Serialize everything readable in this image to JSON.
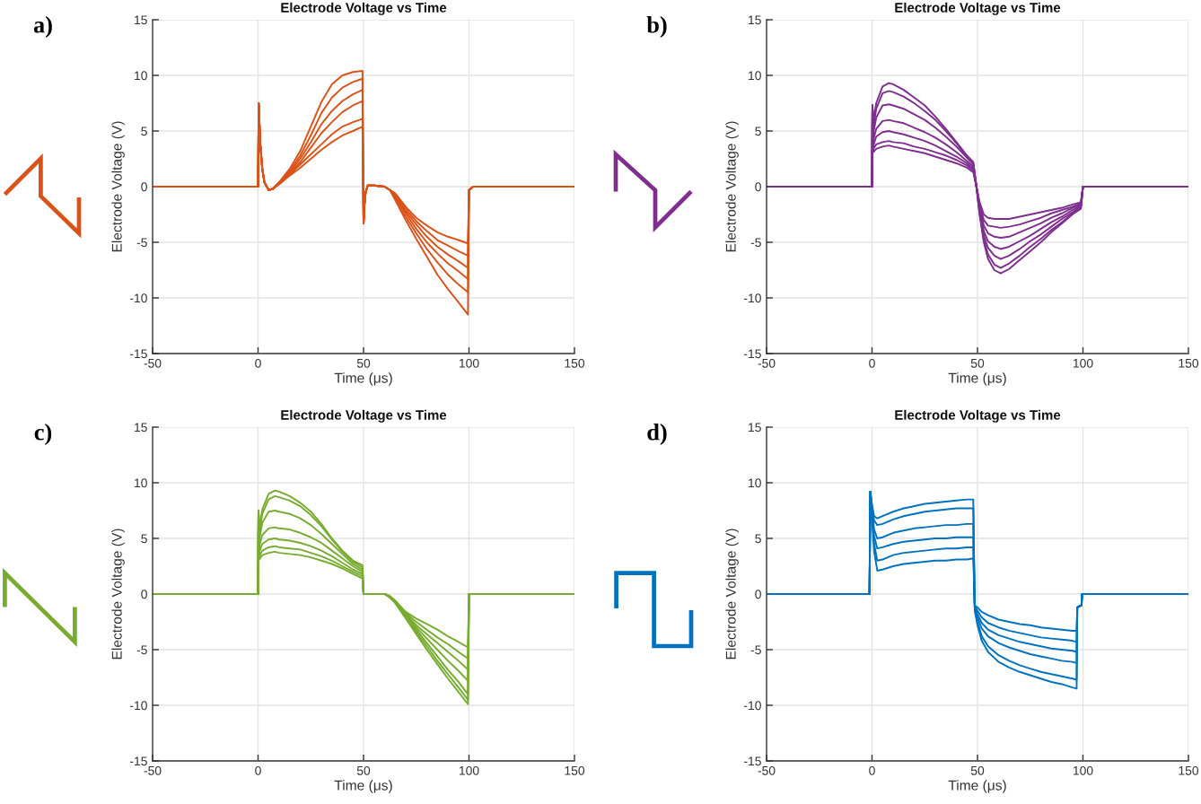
{
  "chart_data": [
    {
      "type": "line",
      "title": "Electrode Voltage vs Time",
      "xlabel": "Time (μs)",
      "ylabel": "Electrode Voltage (V)",
      "annotations": [
        "a)"
      ],
      "xlim": [
        -50,
        150
      ],
      "xticks": [
        -50,
        0,
        50,
        100,
        150
      ],
      "ylim": [
        -15,
        15
      ],
      "yticks": [
        -15,
        -10,
        -5,
        0,
        5,
        10,
        15
      ],
      "grid": true,
      "x": [
        -50,
        0,
        0.3,
        1,
        2,
        3,
        5,
        7,
        10,
        15,
        20,
        25,
        30,
        35,
        40,
        45,
        49.5,
        50,
        50.5,
        51,
        52,
        55,
        60,
        62.5,
        65,
        70,
        75,
        80,
        85,
        90,
        95,
        99.5,
        100,
        102,
        150
      ],
      "series": [
        {
          "color": "#d95319",
          "values": [
            0,
            0,
            7.5,
            4.0,
            1.6,
            0.4,
            -0.3,
            -0.2,
            0.4,
            1.6,
            3.2,
            5.4,
            7.6,
            9.2,
            10.0,
            10.3,
            10.4,
            -3.3,
            -1.5,
            -0.5,
            0.1,
            0.1,
            0,
            -0.3,
            -1.2,
            -3.0,
            -4.7,
            -6.3,
            -7.9,
            -9.2,
            -10.4,
            -11.5,
            -0.3,
            0,
            0
          ]
        },
        {
          "color": "#d95319",
          "values": [
            0,
            0,
            7.5,
            4.0,
            1.6,
            0.4,
            -0.3,
            -0.2,
            0.4,
            1.4,
            2.8,
            4.6,
            6.6,
            8.0,
            8.9,
            9.4,
            9.7,
            -3.3,
            -1.5,
            -0.5,
            0.1,
            0.1,
            0,
            -0.3,
            -1.0,
            -2.7,
            -4.2,
            -5.6,
            -6.8,
            -7.9,
            -8.8,
            -9.5,
            -0.3,
            0,
            0
          ]
        },
        {
          "color": "#d95319",
          "values": [
            0,
            0,
            7.5,
            4.0,
            1.6,
            0.4,
            -0.3,
            -0.2,
            0.3,
            1.3,
            2.5,
            4.0,
            5.6,
            6.8,
            7.7,
            8.3,
            8.7,
            -3.3,
            -1.5,
            -0.5,
            0.1,
            0.1,
            0,
            -0.3,
            -0.9,
            -2.4,
            -3.8,
            -5.0,
            -6.0,
            -6.9,
            -7.6,
            -8.3,
            -0.3,
            0,
            0
          ]
        },
        {
          "color": "#d95319",
          "values": [
            0,
            0,
            7.5,
            4.0,
            1.6,
            0.4,
            -0.3,
            -0.2,
            0.3,
            1.2,
            2.2,
            3.5,
            4.8,
            5.8,
            6.7,
            7.3,
            7.7,
            -3.3,
            -1.5,
            -0.5,
            0.1,
            0.1,
            0,
            -0.3,
            -0.8,
            -2.2,
            -3.4,
            -4.5,
            -5.4,
            -6.1,
            -6.7,
            -7.3,
            -0.3,
            0,
            0
          ]
        },
        {
          "color": "#d95319",
          "values": [
            0,
            0,
            7.5,
            4.0,
            1.6,
            0.4,
            -0.3,
            -0.2,
            0.3,
            1.1,
            2.0,
            2.9,
            3.8,
            4.7,
            5.4,
            5.8,
            6.1,
            -3.3,
            -1.5,
            -0.5,
            0.1,
            0.1,
            0,
            -0.3,
            -0.7,
            -2.0,
            -3.1,
            -4.0,
            -4.8,
            -5.3,
            -5.8,
            -6.2,
            -0.3,
            0,
            0
          ]
        },
        {
          "color": "#d95319",
          "values": [
            0,
            0,
            7.5,
            4.0,
            1.6,
            0.4,
            -0.3,
            -0.2,
            0.2,
            1.0,
            1.7,
            2.5,
            3.3,
            4.0,
            4.6,
            5.0,
            5.4,
            -3.3,
            -1.5,
            -0.5,
            0.1,
            0.1,
            0,
            -0.3,
            -0.6,
            -1.8,
            -2.8,
            -3.5,
            -4.1,
            -4.5,
            -4.8,
            -5.1,
            -0.3,
            0,
            0
          ]
        }
      ]
    },
    {
      "type": "line",
      "title": "Electrode Voltage vs Time",
      "xlabel": "Time (μs)",
      "ylabel": "Electrode Voltage (V)",
      "annotations": [
        "b)"
      ],
      "xlim": [
        -50,
        150
      ],
      "xticks": [
        -50,
        0,
        50,
        100,
        150
      ],
      "ylim": [
        -15,
        15
      ],
      "yticks": [
        -15,
        -10,
        -5,
        0,
        5,
        10,
        15
      ],
      "grid": true,
      "x": [
        -50,
        0,
        0.2,
        0.6,
        2,
        5,
        8,
        10,
        15,
        20,
        25,
        30,
        35,
        40,
        45,
        48,
        49.5,
        51,
        53,
        55,
        58,
        61,
        65,
        70,
        75,
        80,
        85,
        90,
        95,
        99,
        100,
        150
      ],
      "series": [
        {
          "color": "#7e2f8e",
          "values": [
            0,
            0,
            7.3,
            5.8,
            7.5,
            9.0,
            9.3,
            9.2,
            8.7,
            8.0,
            7.3,
            6.3,
            5.2,
            4.0,
            2.8,
            2.2,
            0,
            -2.5,
            -5.0,
            -6.5,
            -7.5,
            -7.8,
            -7.4,
            -6.6,
            -5.8,
            -5.0,
            -4.1,
            -3.3,
            -2.5,
            -2.0,
            0,
            0
          ]
        },
        {
          "color": "#7e2f8e",
          "values": [
            0,
            0,
            7.3,
            5.3,
            7.0,
            8.4,
            8.6,
            8.5,
            8.1,
            7.5,
            6.8,
            6.0,
            5.0,
            3.9,
            2.7,
            2.1,
            0,
            -2.4,
            -4.8,
            -6.1,
            -7.0,
            -7.3,
            -6.9,
            -6.2,
            -5.4,
            -4.7,
            -3.9,
            -3.2,
            -2.4,
            -1.9,
            0,
            0
          ]
        },
        {
          "color": "#7e2f8e",
          "values": [
            0,
            0,
            7.3,
            4.8,
            6.2,
            7.3,
            7.4,
            7.3,
            7.0,
            6.5,
            6.0,
            5.3,
            4.5,
            3.6,
            2.6,
            2.0,
            0,
            -2.2,
            -4.4,
            -5.5,
            -6.2,
            -6.5,
            -6.2,
            -5.6,
            -4.9,
            -4.3,
            -3.6,
            -2.9,
            -2.3,
            -1.8,
            0,
            0
          ]
        },
        {
          "color": "#7e2f8e",
          "values": [
            0,
            0,
            7.3,
            4.2,
            5.2,
            5.9,
            6.0,
            5.9,
            5.7,
            5.3,
            4.9,
            4.4,
            3.8,
            3.1,
            2.3,
            1.8,
            0,
            -2.0,
            -4.0,
            -4.9,
            -5.4,
            -5.6,
            -5.4,
            -4.9,
            -4.4,
            -3.8,
            -3.2,
            -2.7,
            -2.1,
            -1.7,
            0,
            0
          ]
        },
        {
          "color": "#7e2f8e",
          "values": [
            0,
            0,
            7.3,
            3.7,
            4.5,
            4.9,
            5.0,
            4.9,
            4.7,
            4.4,
            4.1,
            3.7,
            3.2,
            2.7,
            2.1,
            1.6,
            0,
            -1.8,
            -3.5,
            -4.2,
            -4.5,
            -4.6,
            -4.5,
            -4.1,
            -3.7,
            -3.3,
            -2.8,
            -2.4,
            -1.9,
            -1.6,
            0,
            0
          ]
        },
        {
          "color": "#7e2f8e",
          "values": [
            0,
            0,
            7.3,
            3.4,
            3.8,
            4.0,
            4.1,
            4.0,
            3.9,
            3.6,
            3.4,
            3.1,
            2.8,
            2.4,
            1.9,
            1.5,
            0,
            -1.6,
            -3.0,
            -3.5,
            -3.6,
            -3.7,
            -3.6,
            -3.4,
            -3.1,
            -2.8,
            -2.4,
            -2.1,
            -1.8,
            -1.5,
            0,
            0
          ]
        },
        {
          "color": "#7e2f8e",
          "values": [
            0,
            0,
            7.3,
            3.1,
            3.4,
            3.6,
            3.7,
            3.6,
            3.4,
            3.2,
            3.0,
            2.7,
            2.4,
            2.1,
            1.7,
            1.3,
            0,
            -1.4,
            -2.5,
            -2.8,
            -2.9,
            -2.9,
            -2.9,
            -2.7,
            -2.5,
            -2.3,
            -2.1,
            -1.9,
            -1.6,
            -1.4,
            0,
            0
          ]
        }
      ]
    },
    {
      "type": "line",
      "title": "Electrode Voltage vs Time",
      "xlabel": "Time (μs)",
      "ylabel": "Electrode Voltage (V)",
      "annotations": [
        "c)"
      ],
      "xlim": [
        -50,
        150
      ],
      "xticks": [
        -50,
        0,
        50,
        100,
        150
      ],
      "ylim": [
        -15,
        15
      ],
      "yticks": [
        -15,
        -10,
        -5,
        0,
        5,
        10,
        15
      ],
      "grid": true,
      "x": [
        -50,
        0,
        0.2,
        0.6,
        2,
        5,
        8,
        10,
        15,
        20,
        25,
        30,
        35,
        40,
        45,
        49.5,
        50,
        55,
        60,
        62.5,
        65,
        70,
        75,
        80,
        85,
        90,
        95,
        99.5,
        100,
        150
      ],
      "series": [
        {
          "color": "#77ac30",
          "values": [
            0,
            0,
            7.5,
            5.8,
            7.6,
            9.0,
            9.3,
            9.2,
            8.8,
            8.2,
            7.4,
            6.3,
            5.0,
            3.9,
            3.0,
            2.6,
            0,
            0,
            0,
            -0.3,
            -0.8,
            -2.2,
            -3.6,
            -5.0,
            -6.3,
            -7.6,
            -8.8,
            -9.9,
            0,
            0
          ]
        },
        {
          "color": "#77ac30",
          "values": [
            0,
            0,
            7.5,
            5.4,
            7.2,
            8.5,
            8.8,
            8.7,
            8.4,
            7.9,
            7.1,
            6.1,
            4.9,
            3.8,
            2.9,
            2.4,
            0,
            0,
            0,
            -0.3,
            -0.8,
            -2.1,
            -3.4,
            -4.7,
            -6.0,
            -7.2,
            -8.4,
            -9.5,
            0,
            0
          ]
        },
        {
          "color": "#77ac30",
          "values": [
            0,
            0,
            7.5,
            4.9,
            6.4,
            7.4,
            7.5,
            7.4,
            7.2,
            6.8,
            6.2,
            5.4,
            4.5,
            3.6,
            2.7,
            2.2,
            0,
            0,
            0,
            -0.3,
            -0.7,
            -2.0,
            -3.2,
            -4.4,
            -5.6,
            -6.8,
            -7.9,
            -9.0,
            0,
            0
          ]
        },
        {
          "color": "#77ac30",
          "values": [
            0,
            0,
            7.5,
            4.3,
            5.3,
            5.9,
            6.0,
            5.9,
            5.8,
            5.5,
            5.1,
            4.6,
            3.9,
            3.2,
            2.5,
            2.0,
            0,
            0,
            0,
            -0.3,
            -0.7,
            -1.9,
            -3.0,
            -4.0,
            -5.0,
            -6.0,
            -6.9,
            -7.8,
            0,
            0
          ]
        },
        {
          "color": "#77ac30",
          "values": [
            0,
            0,
            7.5,
            3.8,
            4.5,
            4.9,
            5.0,
            4.9,
            4.8,
            4.6,
            4.3,
            3.9,
            3.4,
            2.8,
            2.2,
            1.8,
            0,
            0,
            0,
            -0.2,
            -0.6,
            -1.8,
            -2.8,
            -3.6,
            -4.4,
            -5.2,
            -6.0,
            -6.8,
            0,
            0
          ]
        },
        {
          "color": "#77ac30",
          "values": [
            0,
            0,
            7.5,
            3.4,
            3.9,
            4.2,
            4.3,
            4.2,
            4.1,
            4.0,
            3.7,
            3.4,
            3.0,
            2.5,
            2.0,
            1.6,
            0,
            0,
            0,
            -0.2,
            -0.6,
            -1.7,
            -2.5,
            -3.2,
            -3.9,
            -4.5,
            -5.2,
            -5.8,
            0,
            0
          ]
        },
        {
          "color": "#77ac30",
          "values": [
            0,
            0,
            7.5,
            3.1,
            3.5,
            3.7,
            3.8,
            3.7,
            3.6,
            3.5,
            3.3,
            3.0,
            2.7,
            2.3,
            1.8,
            1.4,
            0,
            0,
            0,
            -0.2,
            -0.6,
            -1.6,
            -2.2,
            -2.7,
            -3.2,
            -3.8,
            -4.3,
            -4.8,
            0,
            0
          ]
        }
      ]
    },
    {
      "type": "line",
      "title": "Electrode Voltage vs Time",
      "xlabel": "Time (μs)",
      "ylabel": "Electrode Voltage (V)",
      "annotations": [
        "d)"
      ],
      "xlim": [
        -50,
        150
      ],
      "xticks": [
        -50,
        0,
        50,
        100,
        150
      ],
      "ylim": [
        -15,
        15
      ],
      "yticks": [
        -15,
        -10,
        -5,
        0,
        5,
        10,
        15
      ],
      "grid": true,
      "x": [
        -50,
        -1.2,
        -0.8,
        0,
        1,
        2.5,
        5,
        10,
        15,
        20,
        25,
        30,
        35,
        40,
        45,
        48,
        48.7,
        50,
        52,
        55,
        60,
        65,
        70,
        75,
        80,
        85,
        90,
        95,
        97,
        97.3,
        99.3,
        99.6,
        150
      ],
      "series": [
        {
          "color": "#0072bd",
          "values": [
            0,
            0,
            9.2,
            8.0,
            7.0,
            6.8,
            7.0,
            7.4,
            7.7,
            7.9,
            8.1,
            8.2,
            8.3,
            8.4,
            8.5,
            8.5,
            -1.5,
            -2.8,
            -4.2,
            -5.2,
            -6.1,
            -6.6,
            -7.0,
            -7.3,
            -7.6,
            -7.9,
            -8.1,
            -8.4,
            -8.5,
            -1.2,
            -1.0,
            0,
            0
          ]
        },
        {
          "color": "#0072bd",
          "values": [
            0,
            0,
            9.2,
            7.8,
            6.6,
            6.2,
            6.3,
            6.7,
            7.0,
            7.2,
            7.4,
            7.5,
            7.6,
            7.7,
            7.7,
            7.7,
            -1.4,
            -2.5,
            -3.8,
            -4.7,
            -5.5,
            -6.0,
            -6.4,
            -6.7,
            -7.0,
            -7.2,
            -7.4,
            -7.6,
            -7.7,
            -1.2,
            -1.0,
            0,
            0
          ]
        },
        {
          "color": "#0072bd",
          "values": [
            0,
            0,
            9.2,
            7.5,
            5.8,
            5.0,
            5.1,
            5.5,
            5.7,
            5.9,
            6.0,
            6.1,
            6.2,
            6.2,
            6.3,
            6.3,
            -1.3,
            -2.1,
            -3.1,
            -3.8,
            -4.4,
            -4.8,
            -5.1,
            -5.4,
            -5.6,
            -5.8,
            -6.0,
            -6.1,
            -6.2,
            -1.2,
            -1.0,
            0,
            0
          ]
        },
        {
          "color": "#0072bd",
          "values": [
            0,
            0,
            9.2,
            7.2,
            5.2,
            4.1,
            4.2,
            4.5,
            4.7,
            4.8,
            4.9,
            5.0,
            5.0,
            5.1,
            5.1,
            5.1,
            -1.2,
            -1.8,
            -2.6,
            -3.2,
            -3.7,
            -4.0,
            -4.3,
            -4.5,
            -4.7,
            -4.9,
            -5.0,
            -5.1,
            -5.2,
            -1.2,
            -1.0,
            0,
            0
          ]
        },
        {
          "color": "#0072bd",
          "values": [
            0,
            0,
            9.2,
            7.0,
            4.5,
            3.0,
            3.1,
            3.5,
            3.7,
            3.8,
            3.9,
            4.0,
            4.1,
            4.1,
            4.2,
            4.2,
            -1.1,
            -1.5,
            -2.1,
            -2.6,
            -3.0,
            -3.3,
            -3.5,
            -3.7,
            -3.9,
            -4.0,
            -4.1,
            -4.2,
            -4.3,
            -1.2,
            -1.0,
            0,
            0
          ]
        },
        {
          "color": "#0072bd",
          "values": [
            0,
            0,
            9.2,
            6.8,
            3.8,
            2.1,
            2.2,
            2.5,
            2.7,
            2.8,
            2.9,
            3.0,
            3.0,
            3.1,
            3.1,
            3.2,
            -1.0,
            -1.2,
            -1.6,
            -1.9,
            -2.3,
            -2.5,
            -2.7,
            -2.8,
            -3.0,
            -3.1,
            -3.2,
            -3.3,
            -3.3,
            -1.2,
            -1.0,
            0,
            0
          ]
        }
      ]
    }
  ]
}
